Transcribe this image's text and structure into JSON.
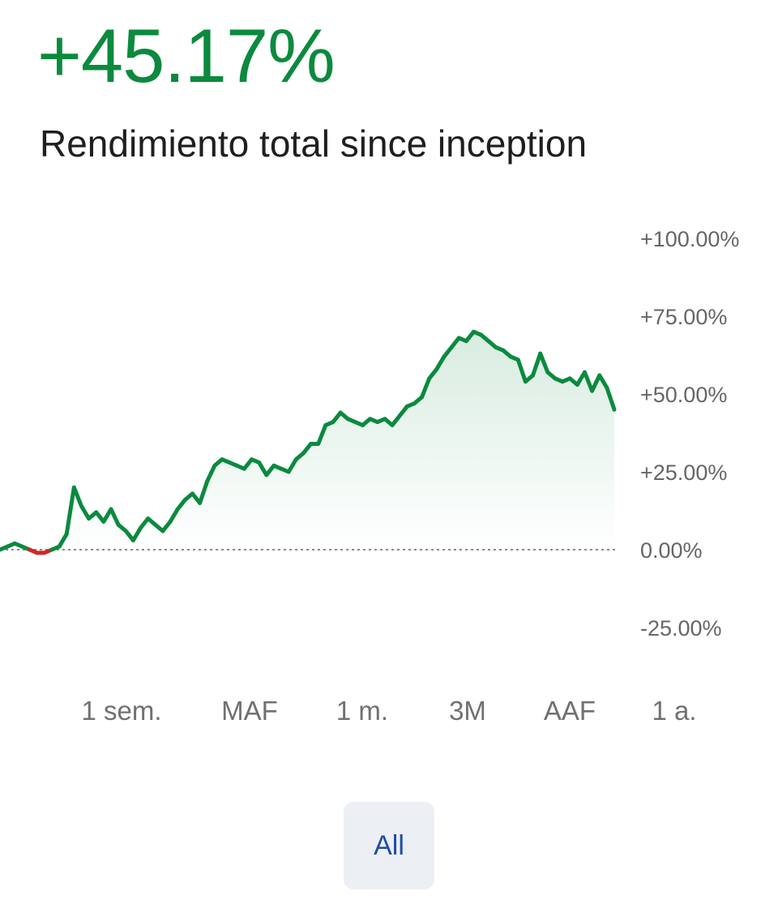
{
  "header": {
    "return_value": "+45.17%",
    "subtitle": "Rendimiento total since inception"
  },
  "colors": {
    "positive": "#0b8a3e",
    "negative": "#d0262b",
    "baseline": "#8a8a8a",
    "tick_label": "#666666",
    "all_button_bg": "#eceff3",
    "all_button_text": "#1d4ea3"
  },
  "chart_data": {
    "type": "area",
    "y_tick_labels": [
      "+100.00%",
      "+75.00%",
      "+50.00%",
      "+25.00%",
      "0.00%",
      "-25.00%"
    ],
    "y_ticks": [
      100,
      75,
      50,
      25,
      0,
      -25
    ],
    "ylim": [
      -25,
      100
    ],
    "baseline_value": 0,
    "grid": false,
    "values": [
      0,
      1,
      2,
      1,
      0,
      -1,
      -1,
      0,
      1,
      5,
      20,
      14,
      10,
      12,
      9,
      13,
      8,
      6,
      3,
      7,
      10,
      8,
      6,
      9,
      13,
      16,
      18,
      15,
      22,
      27,
      29,
      28,
      27,
      26,
      29,
      28,
      24,
      27,
      26,
      25,
      29,
      31,
      34,
      34,
      40,
      41,
      44,
      42,
      41,
      40,
      42,
      41,
      42,
      40,
      43,
      46,
      47,
      49,
      55,
      58,
      62,
      65,
      68,
      67,
      70,
      69,
      67,
      65,
      64,
      62,
      61,
      54,
      56,
      63,
      57,
      55,
      54,
      55,
      53,
      57,
      51,
      56,
      52,
      45
    ]
  },
  "range_selector": {
    "options": [
      "1 sem.",
      "MAF",
      "1 m.",
      "3M",
      "AAF",
      "1 a."
    ],
    "active": "All"
  }
}
